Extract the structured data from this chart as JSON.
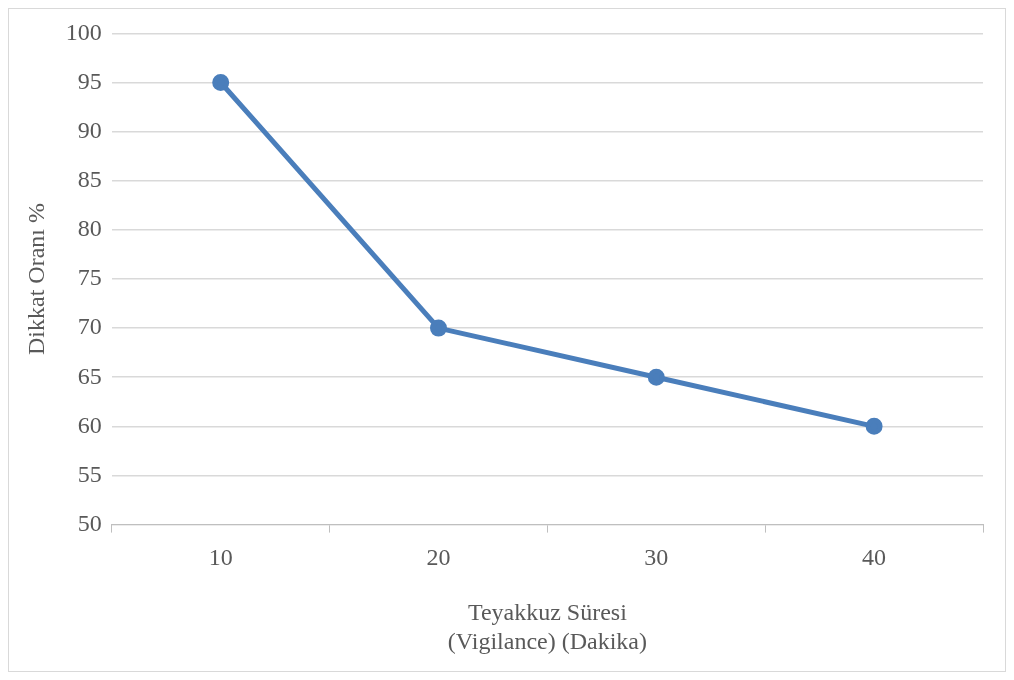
{
  "chart_data": {
    "type": "line",
    "xlabel": "Teyakkuz Süresi\n(Vigilance) (Dakika)",
    "ylabel": "Dikkat Oranı %",
    "categories": [
      "10",
      "20",
      "30",
      "40"
    ],
    "series": [
      {
        "color": "#4a7ebb",
        "values": [
          95,
          70,
          65,
          60
        ]
      }
    ],
    "ylim": [
      50,
      100
    ],
    "yticks": [
      50,
      55,
      60,
      65,
      70,
      75,
      80,
      85,
      90,
      95,
      100
    ],
    "grid": "y",
    "legend": false,
    "marker": "circle",
    "line_style": "solid"
  }
}
